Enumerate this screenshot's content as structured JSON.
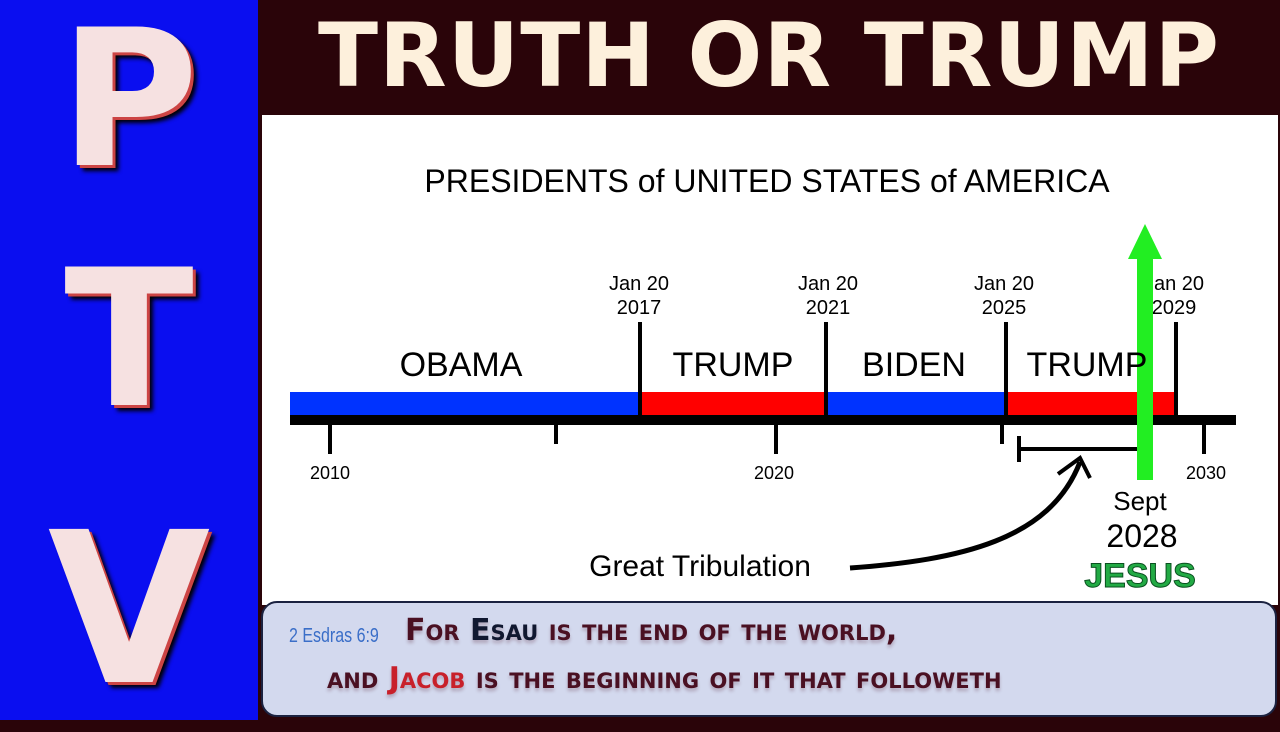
{
  "side_letters": [
    "P",
    "T",
    "V"
  ],
  "header": {
    "title": "TRUTH OR TRUMP"
  },
  "diagram": {
    "title": "PRESIDENTS of UNITED STATES of AMERICA",
    "terms": [
      {
        "name": "OBAMA",
        "color": "#0033ff"
      },
      {
        "name": "TRUMP",
        "color": "#ff0000"
      },
      {
        "name": "BIDEN",
        "color": "#0033ff"
      },
      {
        "name": "TRUMP",
        "color": "#ff0000"
      }
    ],
    "dates": [
      {
        "line1": "Jan 20",
        "line2": "2017"
      },
      {
        "line1": "Jan 20",
        "line2": "2021"
      },
      {
        "line1": "Jan 20",
        "line2": "2025"
      },
      {
        "line1": "Jan 20",
        "line2": "2029"
      }
    ],
    "axis_ticks": [
      "2010",
      "2020",
      "2030"
    ],
    "tribulation_label": "Great Tribulation",
    "marker": {
      "line1": "Sept",
      "line2": "2028",
      "name": "JESUS",
      "color": "#22ee22"
    }
  },
  "verse": {
    "reference": "2 Esdras 6:9",
    "line1_pre": "For ",
    "line1_name": "Esau",
    "line1_post": " is the end of the world,",
    "line2_pre": "and ",
    "line2_name": "Jacob",
    "line2_post": " is the beginning of it that followeth"
  }
}
